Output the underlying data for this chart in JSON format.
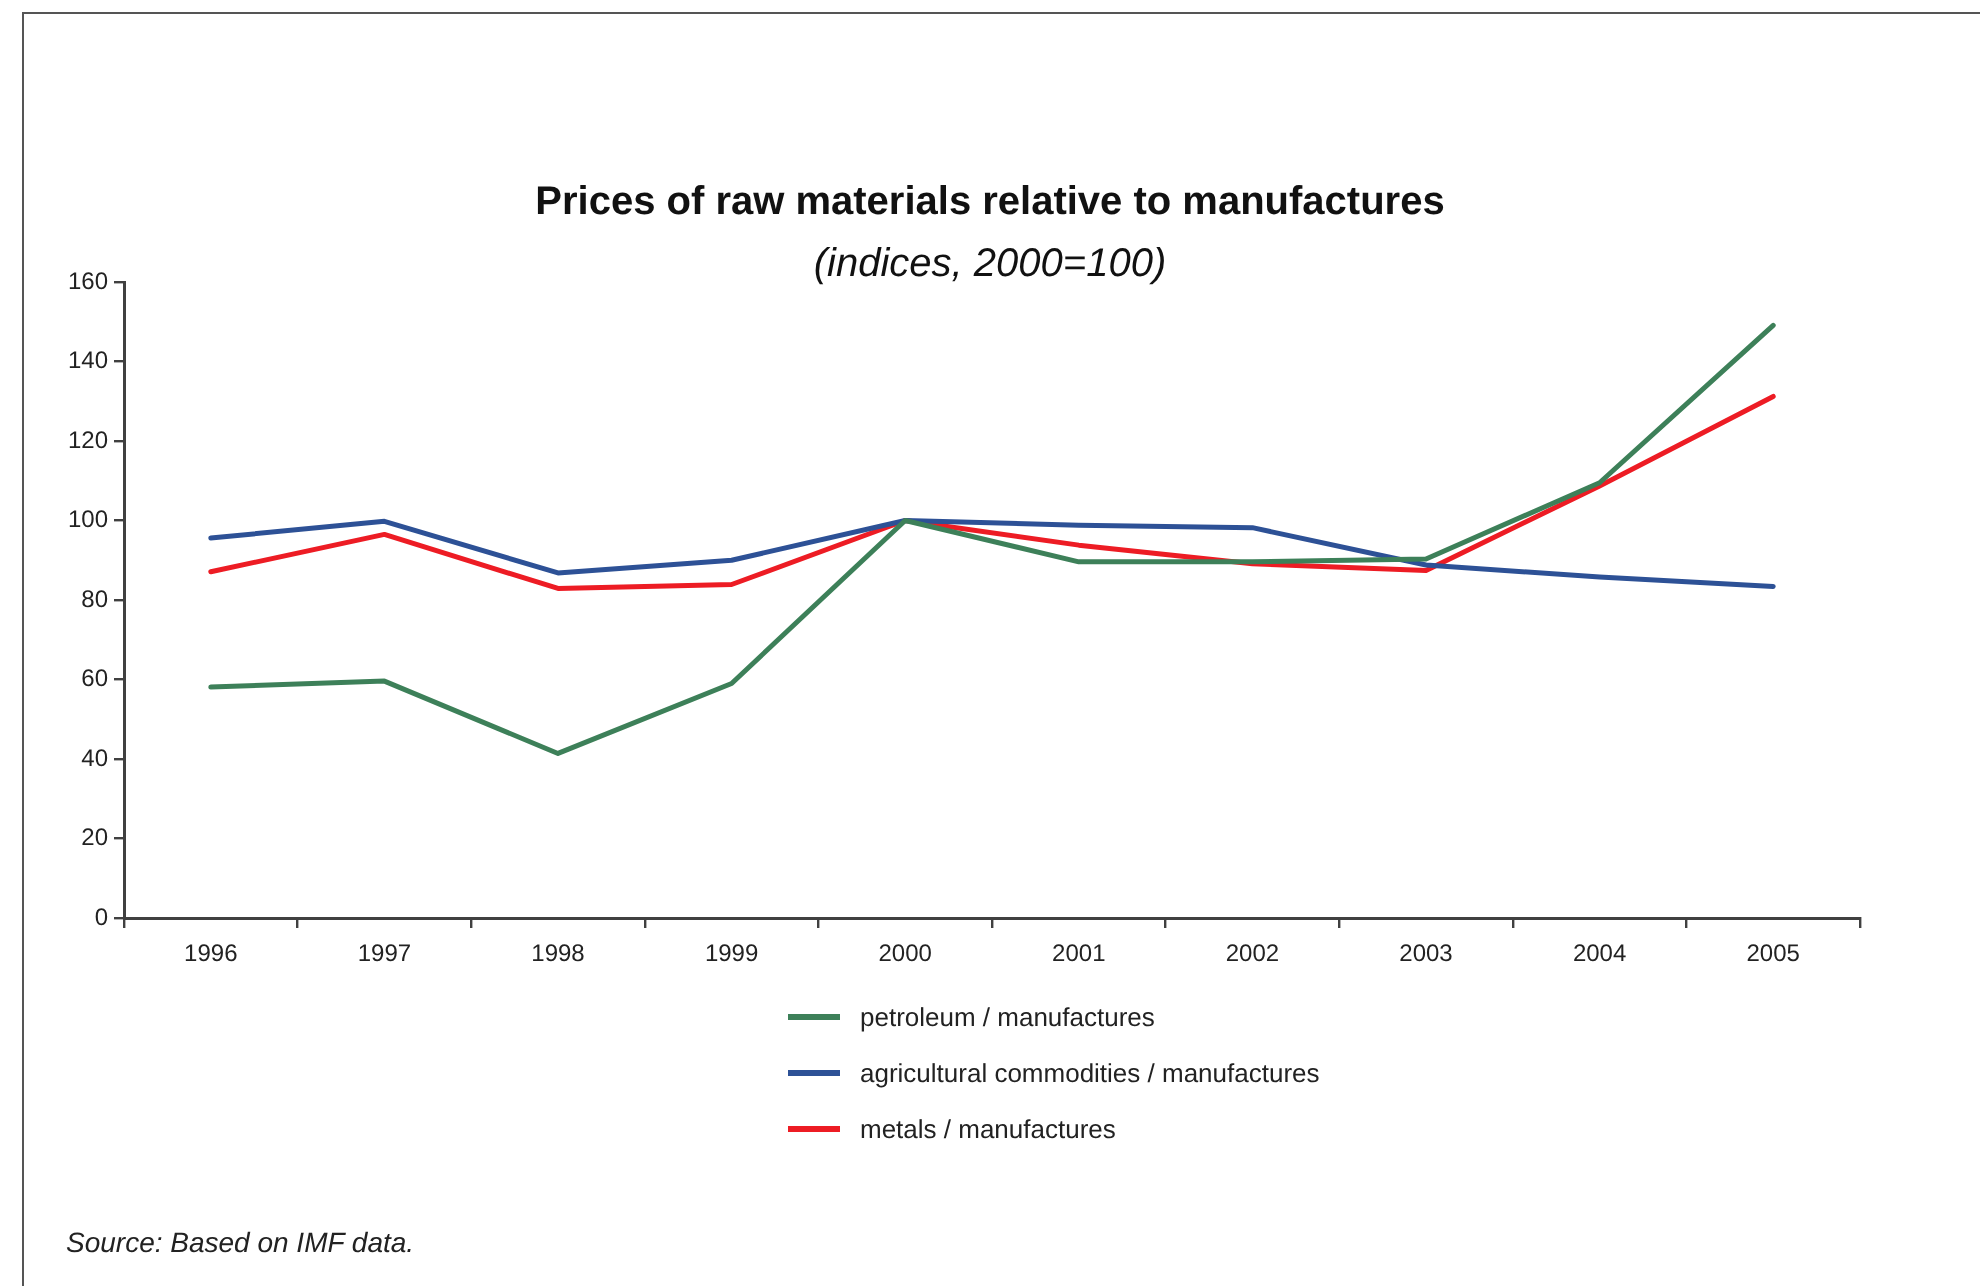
{
  "chart_data": {
    "type": "line",
    "title": "Prices of raw materials relative to manufactures",
    "subtitle": "(indices, 2000=100)",
    "categories": [
      "1996",
      "1997",
      "1998",
      "1999",
      "2000",
      "2001",
      "2002",
      "2003",
      "2004",
      "2005"
    ],
    "series": [
      {
        "name": "petroleum / manufactures",
        "color": "#3d8059",
        "values": [
          58.1,
          59.6,
          41.4,
          59,
          100,
          89.6,
          89.6,
          90.3,
          109.5,
          149.1
        ]
      },
      {
        "name": "agricultural commodities / manufactures",
        "color": "#2d5196",
        "values": [
          95.6,
          99.8,
          86.8,
          90,
          100,
          98.8,
          98.2,
          88.8,
          85.8,
          83.4
        ]
      },
      {
        "name": "metals / manufactures",
        "color": "#ed1c24",
        "values": [
          87.1,
          96.5,
          82.9,
          83.9,
          100,
          93.8,
          89.1,
          87.4,
          108.7,
          131.2
        ]
      }
    ],
    "ylim": [
      0,
      160
    ],
    "yticks": [
      0,
      20,
      40,
      60,
      80,
      100,
      120,
      140,
      160
    ],
    "legend": "bottom",
    "marker": "none",
    "line_style": "solid",
    "annotations": [
      "Source: Based on IMF data."
    ]
  }
}
